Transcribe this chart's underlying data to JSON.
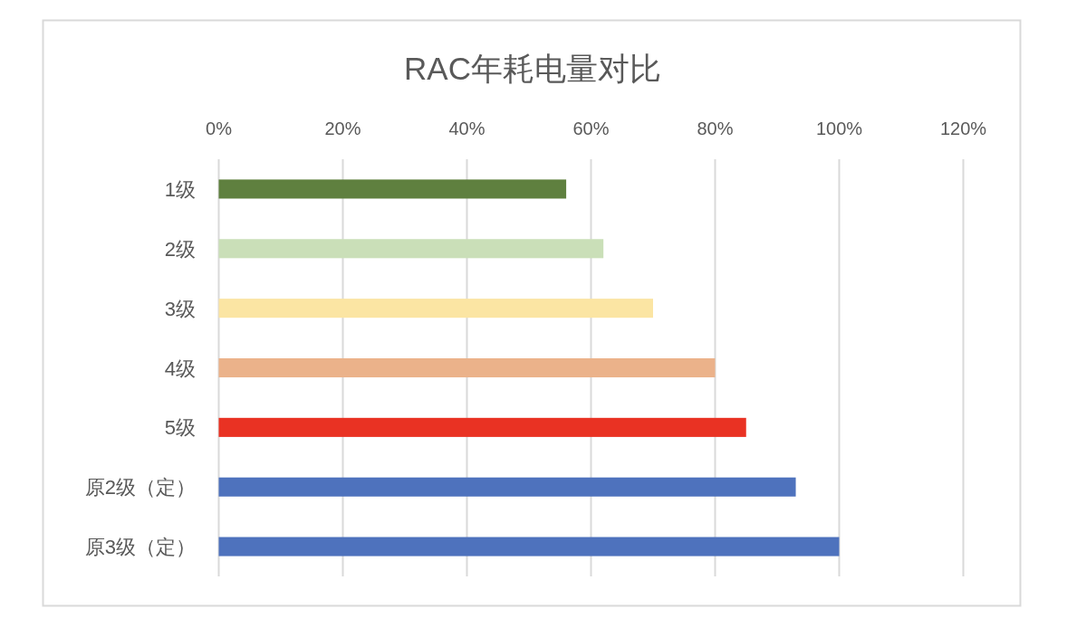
{
  "chart_data": {
    "type": "bar",
    "orientation": "horizontal",
    "title": "RAC年耗电量对比",
    "categories": [
      "1级",
      "2级",
      "3级",
      "4级",
      "5级",
      "原2级（定）",
      "原3级（定）"
    ],
    "values": [
      56,
      62,
      70,
      80,
      85,
      93,
      100
    ],
    "colors": [
      "#5f803f",
      "#cadfb8",
      "#fbe5a3",
      "#ebb28a",
      "#e93223",
      "#4e72bd",
      "#4e72bd"
    ],
    "xlim": [
      0,
      120
    ],
    "xticks": [
      {
        "value": 0,
        "label": "0%"
      },
      {
        "value": 20,
        "label": "20%"
      },
      {
        "value": 40,
        "label": "40%"
      },
      {
        "value": 60,
        "label": "60%"
      },
      {
        "value": 80,
        "label": "80%"
      },
      {
        "value": 100,
        "label": "100%"
      },
      {
        "value": 120,
        "label": "120%"
      }
    ],
    "grid": "x"
  }
}
